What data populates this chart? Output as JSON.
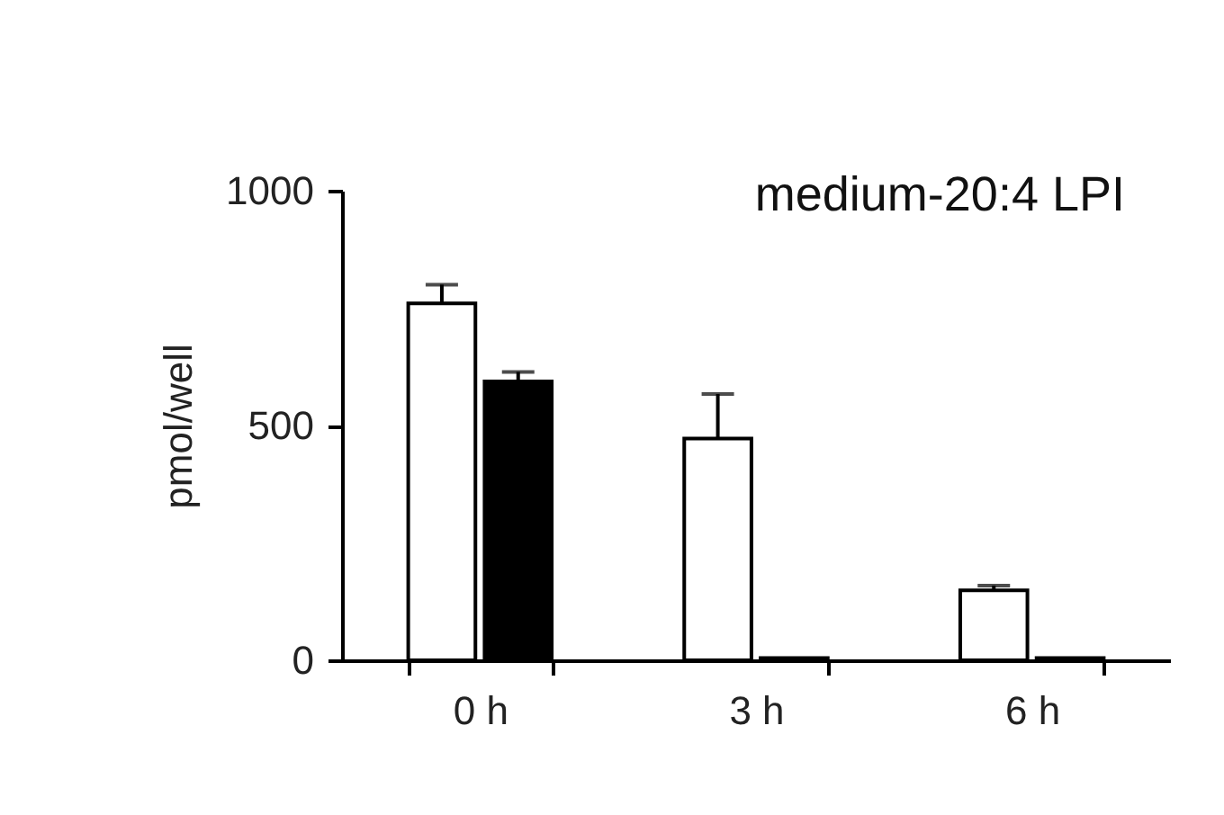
{
  "chart_data": {
    "type": "bar",
    "title": "medium-20:4 LPI",
    "ylabel": "pmol/well",
    "categories": [
      "0 h",
      "3 h",
      "6 h"
    ],
    "series": [
      {
        "color": "#ffffff",
        "values": [
          760,
          472,
          149
        ],
        "errors": [
          40,
          95,
          10
        ]
      },
      {
        "color": "#000000",
        "values": [
          594,
          5,
          5
        ],
        "errors": [
          20,
          null,
          null
        ]
      }
    ],
    "ylim": [
      0,
      1000
    ],
    "yticks": [
      0,
      500,
      1000
    ],
    "grid": false,
    "legend": false
  }
}
